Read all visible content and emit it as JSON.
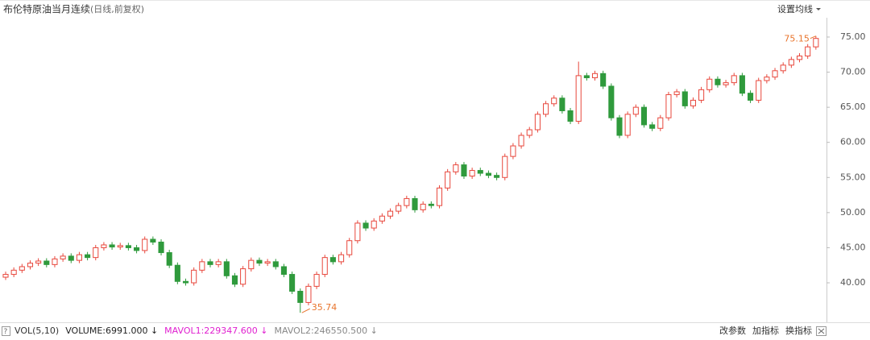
{
  "chart_data": {
    "type": "candlestick",
    "title": "布伦特原油当月连续",
    "subtitle": "(日线,前复权)",
    "ma_button": "设置均线",
    "up_color": "#e8473c",
    "down_color": "#2f9a3c",
    "open": [
      40.8,
      41.2,
      41.8,
      42.3,
      42.8,
      43.1,
      42.6,
      43.4,
      43.8,
      43.2,
      44.0,
      43.6,
      45.0,
      45.4,
      45.1,
      45.3,
      45.0,
      44.6,
      46.2,
      45.8,
      44.3,
      42.5,
      40.2,
      40.0,
      41.8,
      43.0,
      42.6,
      43.0,
      41.0,
      39.8,
      42.0,
      43.2,
      42.8,
      43.0,
      42.3,
      41.2,
      38.8,
      37.2,
      39.5,
      41.2,
      43.6,
      43.0,
      44.0,
      46.0,
      48.5,
      47.8,
      48.8,
      49.5,
      50.2,
      51.0,
      52.0,
      50.4,
      51.2,
      51.0,
      53.5,
      55.8,
      56.8,
      55.2,
      56.0,
      55.6,
      55.3,
      55.0,
      58.0,
      59.5,
      61.0,
      61.8,
      64.0,
      65.5,
      66.3,
      64.5,
      63.0,
      69.5,
      69.2,
      69.8,
      68.0,
      63.5,
      61.0,
      64.0,
      65.0,
      62.5,
      62.0,
      63.5,
      66.8,
      67.2,
      65.2,
      66.0,
      67.5,
      69.0,
      68.2,
      68.5,
      69.5,
      67.0,
      66.0,
      68.8,
      69.3,
      70.2,
      71.0,
      71.8,
      72.3,
      73.6
    ],
    "high": [
      41.6,
      42.2,
      42.7,
      43.2,
      43.5,
      43.5,
      43.8,
      44.2,
      44.2,
      44.4,
      44.4,
      45.4,
      45.8,
      45.8,
      45.7,
      45.7,
      45.4,
      46.6,
      46.6,
      46.2,
      44.7,
      42.9,
      40.6,
      42.2,
      43.4,
      43.4,
      43.4,
      43.4,
      41.4,
      42.4,
      43.6,
      43.6,
      43.4,
      43.4,
      42.7,
      41.6,
      39.2,
      39.9,
      41.6,
      44.0,
      44.0,
      44.4,
      46.4,
      48.9,
      48.9,
      49.2,
      49.9,
      50.6,
      51.4,
      52.4,
      52.4,
      51.6,
      51.6,
      53.9,
      56.2,
      57.2,
      57.2,
      56.4,
      56.4,
      56.0,
      55.7,
      58.4,
      59.9,
      61.4,
      62.2,
      64.4,
      65.9,
      66.7,
      66.7,
      64.9,
      71.5,
      69.9,
      70.2,
      70.2,
      68.4,
      63.9,
      64.4,
      65.4,
      65.4,
      62.9,
      63.9,
      67.2,
      67.6,
      67.6,
      66.4,
      67.9,
      69.4,
      69.4,
      68.9,
      69.9,
      69.9,
      67.4,
      69.2,
      69.7,
      70.6,
      71.4,
      72.2,
      72.7,
      74.0,
      75.15
    ],
    "low": [
      40.4,
      40.8,
      41.4,
      41.9,
      42.4,
      42.2,
      42.2,
      43.0,
      42.8,
      42.8,
      43.2,
      43.2,
      44.6,
      44.7,
      44.7,
      44.6,
      44.2,
      44.2,
      45.4,
      43.9,
      42.1,
      39.8,
      39.6,
      39.6,
      41.4,
      42.2,
      42.2,
      40.6,
      39.4,
      39.4,
      41.6,
      42.4,
      42.4,
      41.9,
      40.8,
      38.4,
      35.74,
      36.8,
      39.1,
      40.8,
      42.6,
      42.6,
      43.6,
      45.6,
      47.4,
      47.4,
      48.4,
      49.1,
      49.8,
      50.6,
      50.0,
      50.0,
      50.6,
      50.6,
      53.1,
      55.4,
      54.8,
      54.8,
      55.2,
      54.9,
      54.6,
      54.6,
      57.6,
      59.1,
      60.6,
      61.4,
      63.6,
      65.1,
      64.1,
      62.6,
      62.6,
      68.8,
      68.8,
      67.6,
      63.1,
      60.6,
      60.6,
      63.6,
      62.1,
      61.6,
      61.6,
      63.1,
      66.4,
      64.8,
      64.8,
      65.6,
      67.1,
      67.8,
      67.8,
      68.1,
      66.6,
      65.6,
      65.6,
      68.4,
      68.9,
      69.8,
      70.6,
      71.4,
      71.9,
      73.2
    ],
    "close": [
      41.2,
      41.8,
      42.3,
      42.8,
      43.1,
      42.6,
      43.4,
      43.8,
      43.2,
      44.0,
      43.6,
      45.0,
      45.4,
      45.1,
      45.3,
      45.0,
      44.6,
      46.2,
      45.8,
      44.3,
      42.5,
      40.2,
      40.0,
      41.8,
      43.0,
      42.6,
      43.0,
      41.0,
      39.8,
      42.0,
      43.2,
      42.8,
      43.0,
      42.3,
      41.2,
      38.8,
      37.2,
      39.5,
      41.2,
      43.6,
      43.0,
      44.0,
      46.0,
      48.5,
      47.8,
      48.8,
      49.5,
      50.2,
      51.0,
      52.0,
      50.4,
      51.2,
      51.0,
      53.5,
      55.8,
      56.8,
      55.2,
      56.0,
      55.6,
      55.3,
      55.0,
      58.0,
      59.5,
      61.0,
      61.8,
      64.0,
      65.5,
      66.3,
      64.5,
      63.0,
      69.5,
      69.2,
      69.8,
      68.0,
      63.5,
      61.0,
      64.0,
      65.0,
      62.5,
      62.0,
      63.5,
      66.8,
      67.2,
      65.2,
      66.0,
      67.5,
      69.0,
      68.2,
      68.5,
      69.5,
      67.0,
      66.0,
      68.8,
      69.3,
      70.2,
      71.0,
      71.8,
      72.3,
      73.6,
      74.8
    ],
    "ylim": [
      34.38,
      77.75
    ],
    "yticks": [
      {
        "value": 40,
        "label": "40.00"
      },
      {
        "value": 45,
        "label": "45.00"
      },
      {
        "value": 50,
        "label": "50.00"
      },
      {
        "value": 55,
        "label": "55.00"
      },
      {
        "value": 60,
        "label": "60.00"
      },
      {
        "value": 65,
        "label": "65.00"
      },
      {
        "value": 70,
        "label": "70.00"
      },
      {
        "value": 75,
        "label": "75.00"
      }
    ],
    "grid": false,
    "indicator": {
      "name": "VOL(5,10)",
      "items": [
        {
          "label": "VOLUME:6991.000 ↓",
          "color": "#222222"
        },
        {
          "label": "MAVOL1:229347.600 ↓",
          "color": "#e020d0"
        },
        {
          "label": "MAVOL2:246550.500 ↓",
          "color": "#888888"
        }
      ],
      "buttons": [
        "改参数",
        "加指标",
        "换指标"
      ]
    }
  }
}
